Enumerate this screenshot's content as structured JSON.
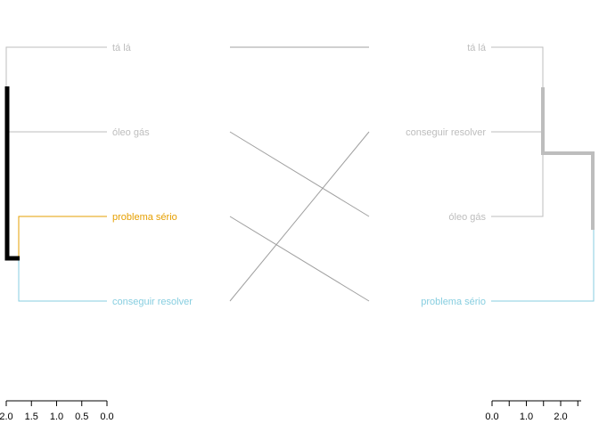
{
  "chart_data": {
    "type": "tanglegram",
    "colors": {
      "grey": "#bdbdbd",
      "black": "#000000",
      "orange": "#e69f00",
      "skyblue": "#87cee0",
      "connector": "#a0a0a0",
      "axis": "#000000"
    },
    "left_tree": {
      "leaves": [
        {
          "label": "tá lá",
          "color": "#bdbdbd"
        },
        {
          "label": "óleo gás",
          "color": "#bdbdbd"
        },
        {
          "label": "problema sério",
          "color": "#e69f00"
        },
        {
          "label": "conseguir resolver",
          "color": "#87cee0"
        }
      ],
      "axis_ticks": [
        "2.0",
        "1.5",
        "1.0",
        "0.5",
        "0.0"
      ],
      "axis_values": [
        2.0,
        1.5,
        1.0,
        0.5,
        0.0
      ],
      "axis_range": [
        2.0,
        0.0
      ]
    },
    "right_tree": {
      "leaves": [
        {
          "label": "tá lá",
          "color": "#bdbdbd"
        },
        {
          "label": "conseguir resolver",
          "color": "#bdbdbd"
        },
        {
          "label": "óleo gás",
          "color": "#bdbdbd"
        },
        {
          "label": "problema sério",
          "color": "#87cee0"
        }
      ],
      "axis_ticks": [
        "0.0",
        "1.0",
        "2.0"
      ],
      "axis_values": [
        0.0,
        0.5,
        1.0,
        1.5,
        2.0,
        2.5
      ],
      "axis_range": [
        0.0,
        2.8
      ]
    },
    "connections": [
      {
        "left": "tá lá",
        "right": "tá lá"
      },
      {
        "left": "óleo gás",
        "right": "óleo gás"
      },
      {
        "left": "problema sério",
        "right": "problema sério"
      },
      {
        "left": "conseguir resolver",
        "right": "conseguir resolver"
      }
    ]
  }
}
